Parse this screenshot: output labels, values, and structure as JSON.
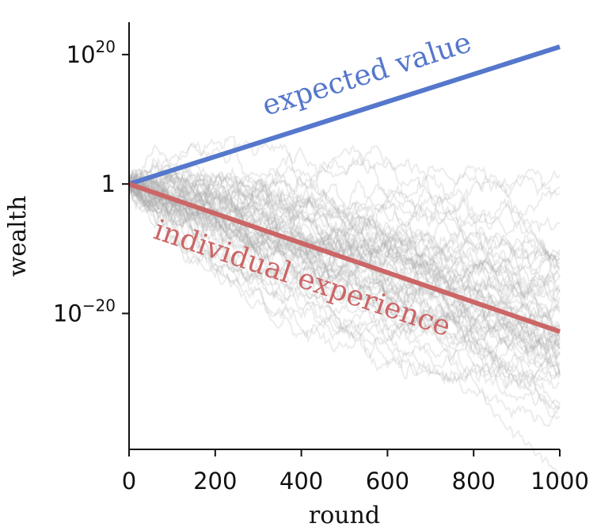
{
  "chart_data": {
    "type": "line",
    "title": "",
    "xlabel": "round",
    "ylabel": "wealth",
    "y_scale": "log10",
    "xlim": [
      0,
      1000
    ],
    "ylim_log10": [
      -41,
      25
    ],
    "x_ticks": [
      {
        "value": 0,
        "label": "0"
      },
      {
        "value": 200,
        "label": "200"
      },
      {
        "value": 400,
        "label": "400"
      },
      {
        "value": 600,
        "label": "600"
      },
      {
        "value": 800,
        "label": "800"
      },
      {
        "value": 1000,
        "label": "1000"
      }
    ],
    "y_ticks": [
      {
        "value_log10": 20,
        "base": "10",
        "exponent": "20",
        "label": "10^20"
      },
      {
        "value_log10": 0,
        "base": "1",
        "exponent": "",
        "label": "1"
      },
      {
        "value_log10": -20,
        "base": "10",
        "exponent": "−20",
        "label": "10^−20"
      }
    ],
    "series": [
      {
        "name": "expected value",
        "color": "#5577cc",
        "x": [
          0,
          1000
        ],
        "log10_y": [
          0,
          21.2
        ]
      },
      {
        "name": "individual experience",
        "color": "#cc6666",
        "x": [
          0,
          1000
        ],
        "log10_y": [
          0,
          -22.8
        ]
      }
    ],
    "simulated_paths": {
      "description_shown": false,
      "count": 60,
      "color": "#aaaaaa",
      "mean_log10_drift_per_round": -0.0228,
      "log10_step_sd": 0.3,
      "seed": 7
    },
    "annotations": [
      {
        "text": "expected value",
        "series": "expected value"
      },
      {
        "text": "individual experience",
        "series": "individual experience"
      }
    ],
    "grid": false,
    "legend": "none"
  }
}
